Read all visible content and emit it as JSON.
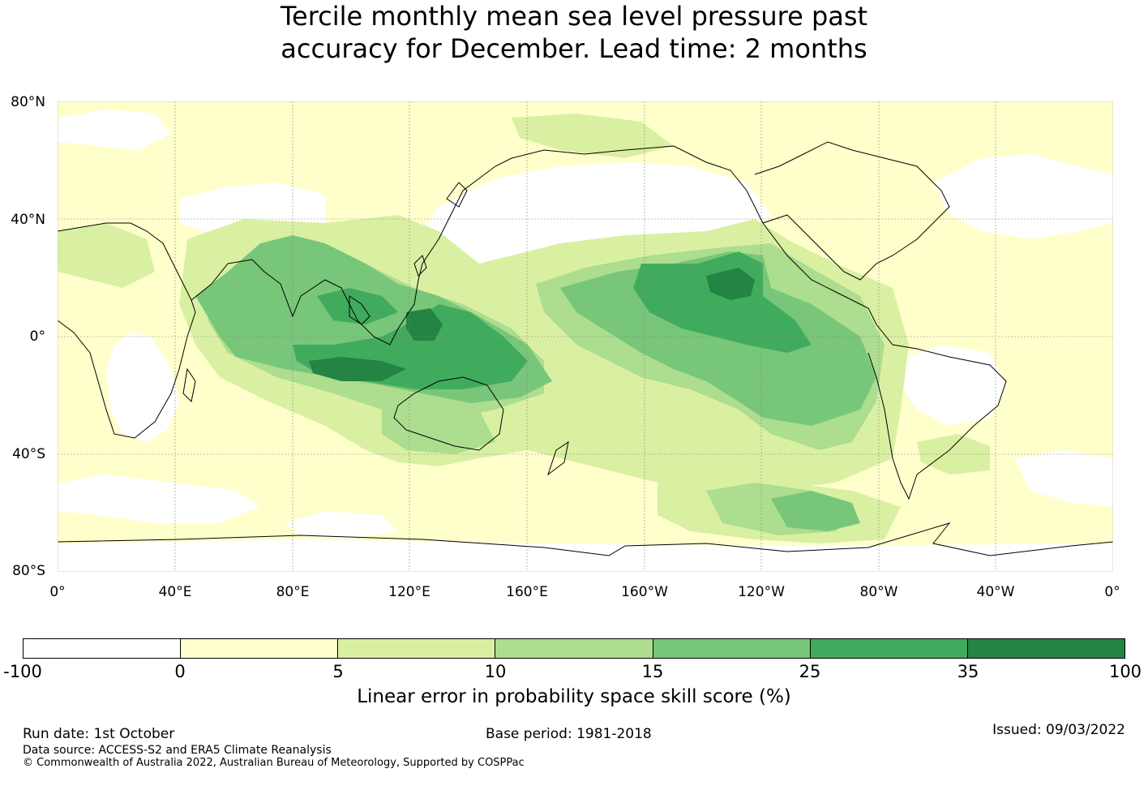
{
  "title": {
    "line1": "Tercile monthly mean sea level pressure past",
    "line2": "accuracy for December. Lead time: 2 months"
  },
  "map": {
    "lat_labels": [
      "80°N",
      "40°N",
      "0°",
      "40°S",
      "80°S"
    ],
    "lon_labels": [
      "0°",
      "40°E",
      "80°E",
      "120°E",
      "160°E",
      "160°W",
      "120°W",
      "80°W",
      "40°W",
      "0°"
    ],
    "colors": {
      "bin_minus100_0": "#ffffff",
      "bin_0_5": "#ffffcc",
      "bin_5_10": "#d9f0a3",
      "bin_10_15": "#addd8e",
      "bin_15_25": "#78c679",
      "bin_25_35": "#41ab5d",
      "bin_35_100": "#238443",
      "coastline": "#000000",
      "gridline": "#888888"
    }
  },
  "colorbar": {
    "ticks": [
      "-100",
      "0",
      "5",
      "10",
      "15",
      "25",
      "35",
      "100"
    ],
    "colors": [
      "#ffffff",
      "#ffffcc",
      "#d9f0a3",
      "#addd8e",
      "#78c679",
      "#41ab5d",
      "#238443"
    ],
    "label": "Linear error in probability space skill score (%)"
  },
  "footer": {
    "run_date": "Run date: 1st October",
    "base_period": "Base period: 1981-2018",
    "issued": "Issued: 09/03/2022",
    "data_source": "Data source: ACCESS-S2 and ERA5 Climate Reanalysis",
    "copyright": "© Commonwealth of Australia 2022, Australian Bureau of Meteorology, Supported by COSPPac"
  }
}
